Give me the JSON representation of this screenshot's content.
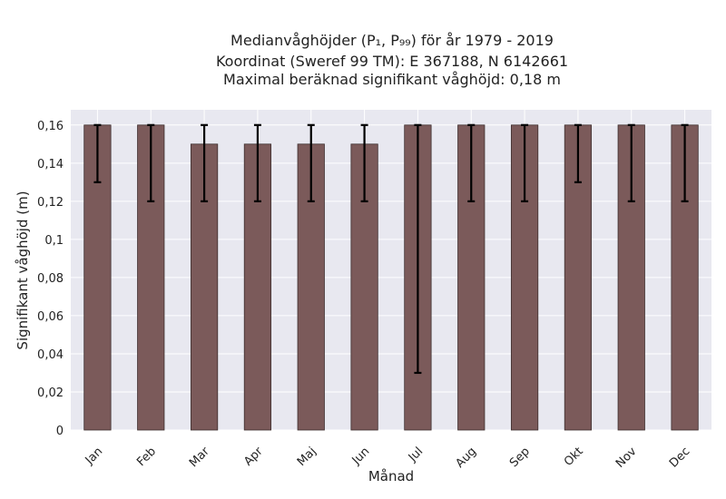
{
  "chart_data": {
    "type": "bar",
    "title_lines": [
      "Medianvåghöjder (P₁, P₉₉) för år 1979 - 2019",
      "Koordinat (Sweref 99 TM): E 367188, N 6142661",
      "Maximal beräknad signifikant våghöjd: 0,18 m"
    ],
    "xlabel": "Månad",
    "ylabel": "Signifikant våghöjd (m)",
    "categories": [
      "Jan",
      "Feb",
      "Mar",
      "Apr",
      "Maj",
      "Jun",
      "Jul",
      "Aug",
      "Sep",
      "Okt",
      "Nov",
      "Dec"
    ],
    "values": [
      0.16,
      0.16,
      0.15,
      0.15,
      0.15,
      0.15,
      0.16,
      0.16,
      0.16,
      0.16,
      0.16,
      0.16
    ],
    "error_low": [
      0.13,
      0.12,
      0.12,
      0.12,
      0.12,
      0.12,
      0.03,
      0.12,
      0.12,
      0.13,
      0.12,
      0.12
    ],
    "error_high": [
      0.16,
      0.16,
      0.16,
      0.16,
      0.16,
      0.16,
      0.16,
      0.16,
      0.16,
      0.16,
      0.16,
      0.16
    ],
    "ylim": [
      0,
      0.168
    ],
    "yticks": [
      0,
      0.02,
      0.04,
      0.06,
      0.08,
      0.1,
      0.12,
      0.14,
      0.16
    ],
    "ytick_labels": [
      "0",
      "0,02",
      "0,04",
      "0,06",
      "0,08",
      "0,1",
      "0,12",
      "0,14",
      "0,16"
    ],
    "grid": true,
    "bar_color": "#7b5a5a",
    "error_color": "#000000",
    "plot_bg": "#e8e8f0"
  }
}
